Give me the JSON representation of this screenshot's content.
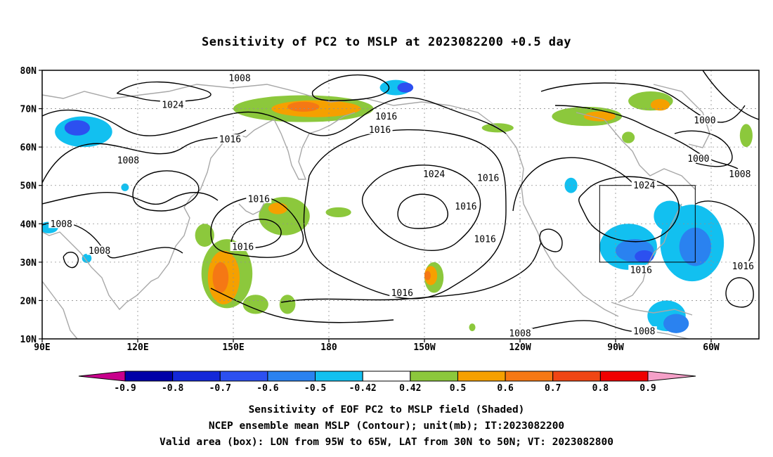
{
  "title": "Sensitivity of PC2 to MSLP at 2023082200 +0.5 day",
  "footer": {
    "line1": "Sensitivity of EOF PC2 to MSLP field (Shaded)",
    "line2": "NCEP ensemble mean MSLP (Contour); unit(mb); IT:2023082200",
    "line3": "Valid area (box): LON from 95W to 65W, LAT from 30N to 50N; VT: 2023082800"
  },
  "axes": {
    "lat_labels": [
      "80N",
      "70N",
      "60N",
      "50N",
      "40N",
      "30N",
      "20N",
      "10N"
    ],
    "lat_values": [
      80,
      70,
      60,
      50,
      40,
      30,
      20,
      10
    ],
    "lon_labels": [
      "90E",
      "120E",
      "150E",
      "180",
      "150W",
      "120W",
      "90W",
      "60W"
    ],
    "lon_values": [
      90,
      120,
      150,
      180,
      210,
      240,
      270,
      300
    ],
    "lon_range": [
      90,
      315
    ],
    "lat_range": [
      10,
      80
    ],
    "grid": true
  },
  "valid_box": {
    "lon_min": 265,
    "lon_max": 295,
    "lat_min": 30,
    "lat_max": 50
  },
  "colorbar": {
    "labels": [
      "-0.9",
      "-0.8",
      "-0.7",
      "-0.6",
      "-0.5",
      "-0.42",
      "0.42",
      "0.5",
      "0.6",
      "0.7",
      "0.8",
      "0.9"
    ],
    "colors": [
      "#0000a8",
      "#1428d8",
      "#2c50f0",
      "#2a82f0",
      "#12c0f0",
      "#ffffff",
      "#8cc83c",
      "#f5a000",
      "#f57814",
      "#f04614",
      "#f00000"
    ],
    "low_color": "#c8008c",
    "high_color": "#f5a0c8"
  },
  "contour_labels": [
    {
      "text": "1008",
      "lon": 152,
      "lat": 78
    },
    {
      "text": "1024",
      "lon": 131,
      "lat": 71
    },
    {
      "text": "1016",
      "lon": 198,
      "lat": 68
    },
    {
      "text": "1016",
      "lon": 196,
      "lat": 64.5
    },
    {
      "text": "1016",
      "lon": 149,
      "lat": 62
    },
    {
      "text": "1008",
      "lon": 117,
      "lat": 56.5
    },
    {
      "text": "1016",
      "lon": 230,
      "lat": 52
    },
    {
      "text": "1024",
      "lon": 213,
      "lat": 53
    },
    {
      "text": "1024",
      "lon": 279,
      "lat": 50
    },
    {
      "text": "1000",
      "lon": 298,
      "lat": 67
    },
    {
      "text": "1000",
      "lon": 296,
      "lat": 57
    },
    {
      "text": "1008",
      "lon": 309,
      "lat": 53
    },
    {
      "text": "1016",
      "lon": 158,
      "lat": 46.5
    },
    {
      "text": "1016",
      "lon": 223,
      "lat": 44.5
    },
    {
      "text": "1008",
      "lon": 96,
      "lat": 40
    },
    {
      "text": "1016",
      "lon": 229,
      "lat": 36
    },
    {
      "text": "1016",
      "lon": 153,
      "lat": 34
    },
    {
      "text": "1008",
      "lon": 108,
      "lat": 33
    },
    {
      "text": "1016",
      "lon": 278,
      "lat": 28
    },
    {
      "text": "1016",
      "lon": 310,
      "lat": 29
    },
    {
      "text": "1016",
      "lon": 203,
      "lat": 22
    },
    {
      "text": "1008",
      "lon": 240,
      "lat": 11.5
    },
    {
      "text": "1008",
      "lon": 279,
      "lat": 12
    }
  ],
  "shaded_regions": [
    {
      "level": "-0.5",
      "lon": 103,
      "lat": 64,
      "rx": 9,
      "ry": 4
    },
    {
      "level": "-0.7",
      "lon": 101,
      "lat": 65,
      "rx": 4,
      "ry": 2
    },
    {
      "level": "-0.5",
      "lon": 201,
      "lat": 75.5,
      "rx": 5,
      "ry": 2
    },
    {
      "level": "-0.7",
      "lon": 204,
      "lat": 75.5,
      "rx": 2.5,
      "ry": 1.3
    },
    {
      "level": "-0.5",
      "lon": 92,
      "lat": 39,
      "rx": 3,
      "ry": 1.5
    },
    {
      "level": "-0.5",
      "lon": 104,
      "lat": 31,
      "rx": 1.5,
      "ry": 1.2
    },
    {
      "level": "-0.5",
      "lon": 116,
      "lat": 49.5,
      "rx": 1.2,
      "ry": 1
    },
    {
      "level": "-0.5",
      "lon": 256,
      "lat": 50,
      "rx": 2,
      "ry": 2
    },
    {
      "level": "-0.5",
      "lon": 274,
      "lat": 34,
      "rx": 9,
      "ry": 6
    },
    {
      "level": "-0.6",
      "lon": 276,
      "lat": 33,
      "rx": 6,
      "ry": 3
    },
    {
      "level": "-0.7",
      "lon": 279,
      "lat": 31.5,
      "rx": 3,
      "ry": 1.6
    },
    {
      "level": "-0.5",
      "lon": 294,
      "lat": 35,
      "rx": 10,
      "ry": 10
    },
    {
      "level": "-0.6",
      "lon": 295,
      "lat": 34,
      "rx": 5,
      "ry": 5
    },
    {
      "level": "-0.5",
      "lon": 287,
      "lat": 42,
      "rx": 5,
      "ry": 4
    },
    {
      "level": "-0.5",
      "lon": 286,
      "lat": 16,
      "rx": 6,
      "ry": 4
    },
    {
      "level": "-0.6",
      "lon": 289,
      "lat": 14,
      "rx": 4,
      "ry": 2.5
    },
    {
      "level": "0.42",
      "lon": 172,
      "lat": 70,
      "rx": 22,
      "ry": 3.5
    },
    {
      "level": "0.5",
      "lon": 176,
      "lat": 70,
      "rx": 14,
      "ry": 2.2
    },
    {
      "level": "0.6",
      "lon": 172,
      "lat": 70.5,
      "rx": 5,
      "ry": 1.3
    },
    {
      "level": "0.42",
      "lon": 281,
      "lat": 72,
      "rx": 7,
      "ry": 2.5
    },
    {
      "level": "0.5",
      "lon": 284,
      "lat": 71,
      "rx": 3,
      "ry": 1.5
    },
    {
      "level": "0.42",
      "lon": 261,
      "lat": 68,
      "rx": 11,
      "ry": 2.5
    },
    {
      "level": "0.5",
      "lon": 265,
      "lat": 68,
      "rx": 5,
      "ry": 1.3
    },
    {
      "level": "0.42",
      "lon": 274,
      "lat": 62.5,
      "rx": 2,
      "ry": 1.5
    },
    {
      "level": "0.42",
      "lon": 311,
      "lat": 63,
      "rx": 2,
      "ry": 3
    },
    {
      "level": "0.42",
      "lon": 233,
      "lat": 65,
      "rx": 5,
      "ry": 1.2
    },
    {
      "level": "0.42",
      "lon": 166,
      "lat": 42,
      "rx": 8,
      "ry": 5
    },
    {
      "level": "0.5",
      "lon": 164,
      "lat": 44,
      "rx": 3,
      "ry": 1.5
    },
    {
      "level": "0.42",
      "lon": 148,
      "lat": 27,
      "rx": 8,
      "ry": 9
    },
    {
      "level": "0.5",
      "lon": 147,
      "lat": 26,
      "rx": 5,
      "ry": 7
    },
    {
      "level": "0.6",
      "lon": 146,
      "lat": 26,
      "rx": 2.5,
      "ry": 4
    },
    {
      "level": "0.42",
      "lon": 141,
      "lat": 37,
      "rx": 3,
      "ry": 3
    },
    {
      "level": "0.42",
      "lon": 157,
      "lat": 19,
      "rx": 4,
      "ry": 2.5
    },
    {
      "level": "0.42",
      "lon": 167,
      "lat": 19,
      "rx": 2.5,
      "ry": 2.5
    },
    {
      "level": "0.42",
      "lon": 213,
      "lat": 26,
      "rx": 3,
      "ry": 4
    },
    {
      "level": "0.5",
      "lon": 212,
      "lat": 26.5,
      "rx": 2,
      "ry": 2.5
    },
    {
      "level": "0.6",
      "lon": 211,
      "lat": 26.5,
      "rx": 1,
      "ry": 1.2
    },
    {
      "level": "0.42",
      "lon": 183,
      "lat": 43,
      "rx": 4,
      "ry": 1.3
    },
    {
      "level": "0.42",
      "lon": 225,
      "lat": 13,
      "rx": 1,
      "ry": 1
    }
  ]
}
